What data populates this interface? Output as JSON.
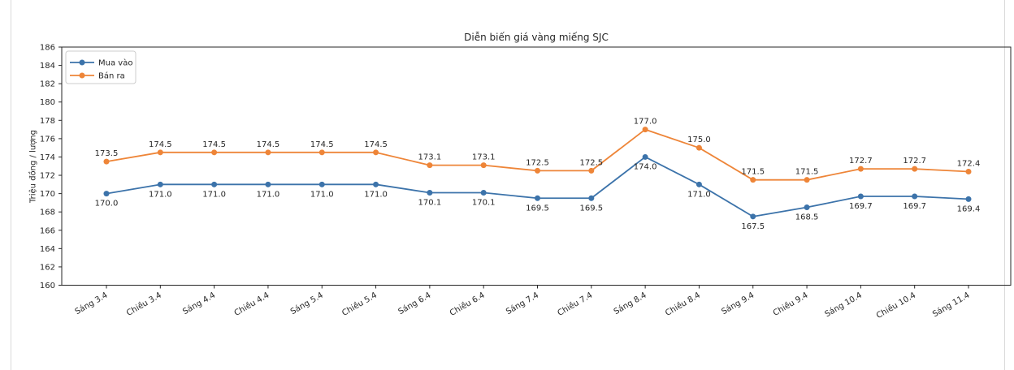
{
  "chart_data": {
    "type": "line",
    "title": "Diễn biến giá vàng miếng SJC",
    "xlabel": "",
    "ylabel": "Triệu đồng / lượng",
    "categories": [
      "Sáng 3.4",
      "Chiều 3.4",
      "Sáng 4.4",
      "Chiều 4.4",
      "Sáng 5.4",
      "Chiều 5.4",
      "Sáng 6.4",
      "Chiều 6.4",
      "Sáng 7.4",
      "Chiều 7.4",
      "Sáng 8.4",
      "Chiều 8.4",
      "Sáng 9.4",
      "Chiều 9.4",
      "Sáng 10.4",
      "Chiều 10.4",
      "Sáng 11.4"
    ],
    "series": [
      {
        "key": "mua-vao",
        "name": "Mua vào",
        "color": "#3c73aa",
        "label_position": "below",
        "values": [
          170.0,
          171.0,
          171.0,
          171.0,
          171.0,
          171.0,
          170.1,
          170.1,
          169.5,
          169.5,
          174.0,
          171.0,
          167.5,
          168.5,
          169.7,
          169.7,
          169.4
        ]
      },
      {
        "key": "ban-ra",
        "name": "Bán ra",
        "color": "#ee8538",
        "label_position": "above",
        "values": [
          173.5,
          174.5,
          174.5,
          174.5,
          174.5,
          174.5,
          173.1,
          173.1,
          172.5,
          172.5,
          177.0,
          175.0,
          171.5,
          171.5,
          172.7,
          172.7,
          172.4
        ]
      }
    ],
    "ylim": [
      160,
      186
    ],
    "ytick_step": 2,
    "point_labels": true,
    "grid": false,
    "legend_position": "upper left",
    "axis_color": "#262626",
    "legend_border_color": "#cccccc"
  }
}
